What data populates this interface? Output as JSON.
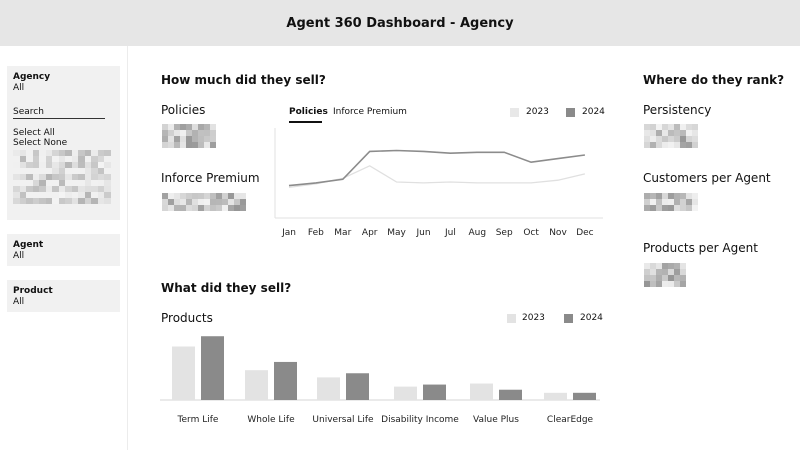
{
  "header": {
    "title": "Agent 360 Dashboard - Agency"
  },
  "sidebar": {
    "agency": {
      "label": "Agency",
      "value": "All",
      "search_placeholder": "Search",
      "select_all": "Select All",
      "select_none": "Select None"
    },
    "agent": {
      "label": "Agent",
      "value": "All"
    },
    "product": {
      "label": "Product",
      "value": "All"
    }
  },
  "sell_section": {
    "title": "How much did they sell?",
    "policies_label": "Policies",
    "premium_label": "Inforce Premium",
    "tabs": [
      "Policies",
      "Inforce Premium"
    ],
    "legend": [
      {
        "name": "2023",
        "color": "#e8e8e8"
      },
      {
        "name": "2024",
        "color": "#8a8a8a"
      }
    ]
  },
  "what_section": {
    "title": "What did they sell?",
    "chart_title": "Products",
    "legend": [
      {
        "name": "2023",
        "color": "#e3e3e3"
      },
      {
        "name": "2024",
        "color": "#8a8a8a"
      }
    ]
  },
  "rank_section": {
    "title": "Where do they rank?",
    "metrics": [
      "Persistency",
      "Customers per Agent",
      "Products per Agent"
    ]
  },
  "chart_data": [
    {
      "type": "line",
      "categories": [
        "Jan",
        "Feb",
        "Mar",
        "Apr",
        "May",
        "Jun",
        "Jul",
        "Aug",
        "Sep",
        "Oct",
        "Nov",
        "Dec"
      ],
      "series": [
        {
          "name": "2023",
          "values": [
            34,
            38,
            44,
            58,
            40,
            39,
            40,
            39,
            39,
            39,
            42,
            49
          ]
        },
        {
          "name": "2024",
          "values": [
            36,
            39,
            43,
            74,
            75,
            74,
            72,
            73,
            73,
            62,
            66,
            70
          ]
        }
      ],
      "ylim": [
        0,
        100
      ],
      "grid": false,
      "legend_position": "top-right"
    },
    {
      "type": "bar",
      "categories": [
        "Term Life",
        "Whole Life",
        "Universal Life",
        "Disability Income",
        "Value Plus",
        "ClearEdge"
      ],
      "series": [
        {
          "name": "2023",
          "values": [
            52,
            29,
            22,
            13,
            16,
            7
          ]
        },
        {
          "name": "2024",
          "values": [
            62,
            37,
            26,
            15,
            10,
            7
          ]
        }
      ],
      "ylim": [
        0,
        70
      ],
      "grid": false,
      "legend_position": "top-right"
    }
  ]
}
